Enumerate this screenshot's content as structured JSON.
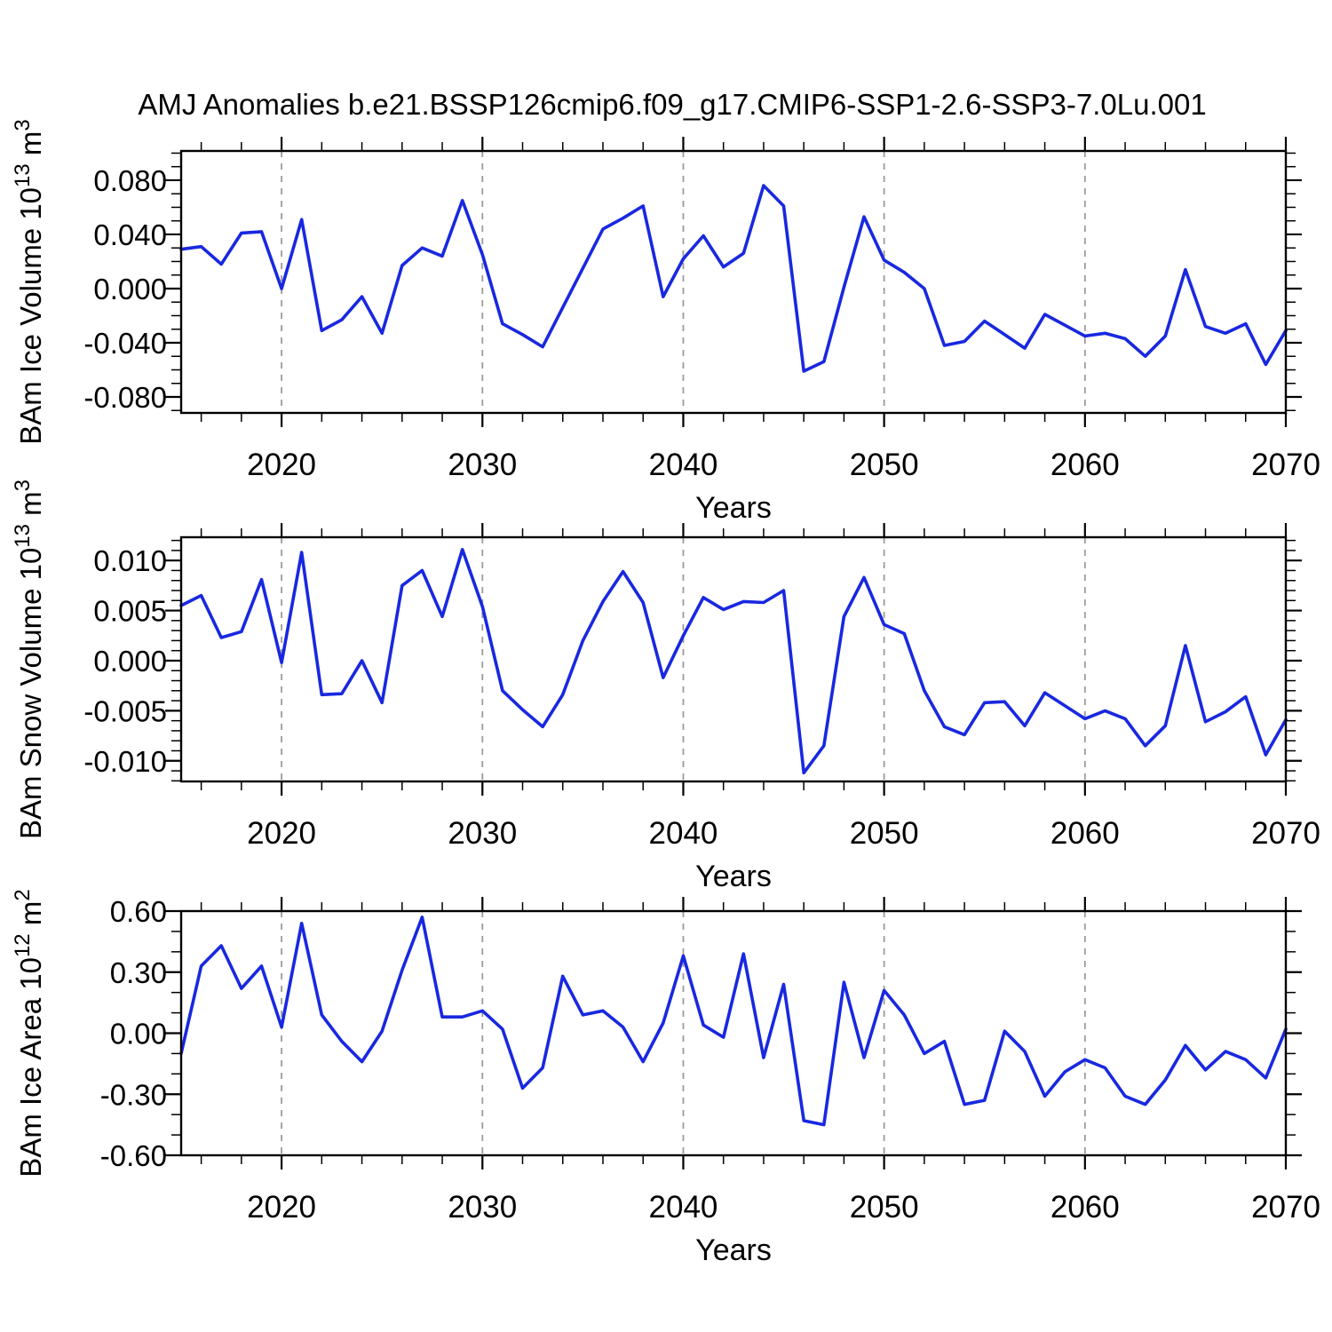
{
  "title": "AMJ Anomalies b.e21.BSSP126cmip6.f09_g17.CMIP6-SSP1-2.6-SSP3-7.0Lu.001",
  "colors": {
    "line": "#1828E0",
    "grid": "#9b9b9b",
    "frame": "#000000"
  },
  "years": [
    2015,
    2016,
    2017,
    2018,
    2019,
    2020,
    2021,
    2022,
    2023,
    2024,
    2025,
    2026,
    2027,
    2028,
    2029,
    2030,
    2031,
    2032,
    2033,
    2034,
    2035,
    2036,
    2037,
    2038,
    2039,
    2040,
    2041,
    2042,
    2043,
    2044,
    2045,
    2046,
    2047,
    2048,
    2049,
    2050,
    2051,
    2052,
    2053,
    2054,
    2055,
    2056,
    2057,
    2058,
    2059,
    2060,
    2061,
    2062,
    2063,
    2064,
    2065,
    2066,
    2067,
    2068,
    2069,
    2070
  ],
  "x_axis": {
    "label": "Years",
    "range": [
      2015,
      2070
    ],
    "major_ticks": [
      2020,
      2030,
      2040,
      2050,
      2060,
      2070
    ],
    "tick_labels": [
      "2020",
      "2030",
      "2040",
      "2050",
      "2060",
      "2070"
    ],
    "minor_step": 2,
    "grid_years": [
      2020,
      2030,
      2040,
      2050,
      2060
    ]
  },
  "chart_data": [
    {
      "type": "line",
      "ylabel": {
        "prefix": "BAm Ice Volume 10",
        "exponent": "13",
        "unit": " m",
        "unit_exponent": "3"
      },
      "ylim": [
        -0.0918,
        0.1016
      ],
      "y_major_step": 0.04,
      "y_minor_step": 0.01,
      "yticks": [
        {
          "v": 0.08,
          "label": "0.080"
        },
        {
          "v": 0.04,
          "label": "0.040"
        },
        {
          "v": 0.0,
          "label": "0.000"
        },
        {
          "v": -0.04,
          "label": "-0.040"
        },
        {
          "v": -0.08,
          "label": "-0.080"
        }
      ],
      "values": [
        0.029,
        0.031,
        0.018,
        0.041,
        0.042,
        0.0,
        0.051,
        -0.031,
        -0.023,
        -0.006,
        -0.033,
        0.017,
        0.03,
        0.024,
        0.065,
        0.025,
        -0.026,
        -0.034,
        -0.043,
        -0.014,
        0.015,
        0.044,
        0.052,
        0.061,
        -0.006,
        0.022,
        0.039,
        0.016,
        0.026,
        0.076,
        0.061,
        -0.061,
        -0.054,
        0.001,
        0.053,
        0.021,
        0.012,
        0.0,
        -0.042,
        -0.039,
        -0.024,
        -0.034,
        -0.044,
        -0.019,
        -0.027,
        -0.035,
        -0.033,
        -0.037,
        -0.05,
        -0.035,
        0.014,
        -0.028,
        -0.033,
        -0.026,
        -0.056,
        -0.031
      ]
    },
    {
      "type": "line",
      "ylabel": {
        "prefix": "BAm Snow Volume 10",
        "exponent": "13",
        "unit": " m",
        "unit_exponent": "3"
      },
      "ylim": [
        -0.01206,
        0.01232
      ],
      "y_major_step": 0.005,
      "y_minor_step": 0.001,
      "yticks": [
        {
          "v": 0.01,
          "label": "0.010"
        },
        {
          "v": 0.005,
          "label": "0.005"
        },
        {
          "v": 0.0,
          "label": "0.000"
        },
        {
          "v": -0.005,
          "label": "-0.005"
        },
        {
          "v": -0.01,
          "label": "-0.010"
        }
      ],
      "values": [
        0.0055,
        0.0065,
        0.0023,
        0.0029,
        0.0081,
        -0.0002,
        0.0108,
        -0.0034,
        -0.0033,
        0.0,
        -0.0042,
        0.0075,
        0.009,
        0.0044,
        0.0111,
        0.0054,
        -0.003,
        -0.0049,
        -0.0066,
        -0.0034,
        0.002,
        0.0059,
        0.0089,
        0.0058,
        -0.0017,
        0.0025,
        0.0063,
        0.0051,
        0.0059,
        0.0058,
        0.007,
        -0.0112,
        -0.0085,
        0.0044,
        0.0083,
        0.0036,
        0.0027,
        -0.003,
        -0.0066,
        -0.0074,
        -0.0042,
        -0.0041,
        -0.0065,
        -0.0032,
        -0.0045,
        -0.0058,
        -0.005,
        -0.0058,
        -0.0085,
        -0.0065,
        0.0015,
        -0.0061,
        -0.0051,
        -0.0036,
        -0.0094,
        -0.0059
      ]
    },
    {
      "type": "line",
      "ylabel": {
        "prefix": "BAm Ice Area 10",
        "exponent": "12",
        "unit": " m",
        "unit_exponent": "2"
      },
      "ylim": [
        -0.6,
        0.6
      ],
      "y_major_step": 0.3,
      "y_minor_step": 0.1,
      "yticks": [
        {
          "v": 0.6,
          "label": "0.60"
        },
        {
          "v": 0.3,
          "label": "0.30"
        },
        {
          "v": 0.0,
          "label": "0.00"
        },
        {
          "v": -0.3,
          "label": "-0.30"
        },
        {
          "v": -0.6,
          "label": "-0.60"
        }
      ],
      "values": [
        -0.1,
        0.33,
        0.43,
        0.22,
        0.33,
        0.03,
        0.54,
        0.09,
        -0.04,
        -0.14,
        0.01,
        0.31,
        0.57,
        0.08,
        0.08,
        0.11,
        0.02,
        -0.27,
        -0.17,
        0.28,
        0.09,
        0.11,
        0.03,
        -0.14,
        0.05,
        0.38,
        0.04,
        -0.02,
        0.39,
        -0.12,
        0.24,
        -0.43,
        -0.45,
        0.25,
        -0.12,
        0.21,
        0.09,
        -0.1,
        -0.04,
        -0.35,
        -0.33,
        0.01,
        -0.09,
        -0.31,
        -0.19,
        -0.13,
        -0.17,
        -0.31,
        -0.35,
        -0.23,
        -0.06,
        -0.18,
        -0.09,
        -0.13,
        -0.22,
        0.02
      ]
    }
  ]
}
